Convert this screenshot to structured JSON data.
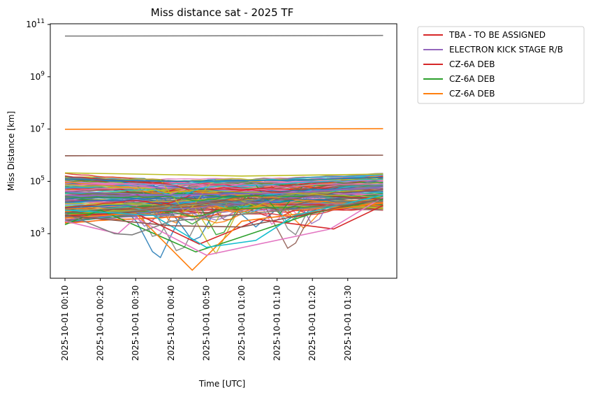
{
  "chart_data": {
    "type": "line",
    "title": "Miss distance sat - 2025 TF",
    "xlabel": "Time [UTC]",
    "ylabel": "Miss Distance [km]",
    "yscale": "log",
    "ylim": [
      10,
      100000000000
    ],
    "y_tick_labels": [
      {
        "base": "10",
        "exp": "3",
        "value": 1000
      },
      {
        "base": "10",
        "exp": "5",
        "value": 100000
      },
      {
        "base": "10",
        "exp": "7",
        "value": 10000000
      },
      {
        "base": "10",
        "exp": "9",
        "value": 1000000000
      },
      {
        "base": "10",
        "exp": "11",
        "value": 100000000000
      }
    ],
    "x_tick_labels": [
      "2025-10-01 00:10",
      "2025-10-01 00:20",
      "2025-10-01 00:30",
      "2025-10-01 00:40",
      "2025-10-01 00:50",
      "2025-10-01 01:00",
      "2025-10-01 01:10",
      "2025-10-01 01:20",
      "2025-10-01 01:30"
    ],
    "x_range": [
      "2025-10-01 00:10",
      "2025-10-01 01:40"
    ],
    "legend_position": "outside right",
    "grid": false,
    "legend": [
      {
        "name": "TBA - TO BE ASSIGNED",
        "color": "#d62728"
      },
      {
        "name": "ELECTRON KICK STAGE R/B",
        "color": "#9467bd"
      },
      {
        "name": "CZ-6A DEB",
        "color": "#d62728"
      },
      {
        "name": "CZ-6A DEB",
        "color": "#2ca02c"
      },
      {
        "name": "CZ-6A DEB",
        "color": "#ff7f0e"
      }
    ],
    "series": [
      {
        "color": "#7f7f7f",
        "times": [
          "2025-10-01 00:10",
          "2025-10-01 01:40"
        ],
        "values": [
          36000000000,
          38000000000
        ]
      },
      {
        "color": "#ff7f0e",
        "times": [
          "2025-10-01 00:10",
          "2025-10-01 01:40"
        ],
        "values": [
          9800000,
          10300000
        ]
      },
      {
        "color": "#8c564b",
        "times": [
          "2025-10-01 00:10",
          "2025-10-01 01:40"
        ],
        "values": [
          950000,
          1000000
        ]
      },
      {
        "color": "#bcbd22",
        "times": [
          "2025-10-01 00:10",
          "2025-10-01 00:30",
          "2025-10-01 01:00",
          "2025-10-01 01:40"
        ],
        "values": [
          210000,
          190000,
          160000,
          190000
        ]
      },
      {
        "color": "#1f77b4",
        "times": [
          "2025-10-01 00:10",
          "2025-10-01 00:40",
          "2025-10-01 01:10",
          "2025-10-01 01:40"
        ],
        "values": [
          120000,
          100000,
          110000,
          140000
        ]
      },
      {
        "color": "#d62728",
        "times": [
          "2025-10-01 00:10",
          "2025-10-01 00:30",
          "2025-10-01 00:48",
          "2025-10-01 01:05",
          "2025-10-01 01:26",
          "2025-10-01 01:40"
        ],
        "values": [
          5000,
          6000,
          400,
          3500,
          1500,
          12000
        ]
      },
      {
        "color": "#9467bd",
        "times": [
          "2025-10-01 00:10",
          "2025-10-01 00:40",
          "2025-10-01 01:10",
          "2025-10-01 01:40"
        ],
        "values": [
          40000,
          30000,
          35000,
          60000
        ]
      },
      {
        "color": "#2ca02c",
        "times": [
          "2025-10-01 00:10",
          "2025-10-01 00:20",
          "2025-10-01 00:47",
          "2025-10-01 00:56",
          "2025-10-01 01:20",
          "2025-10-01 01:40"
        ],
        "values": [
          2200,
          8000,
          200,
          500,
          6000,
          20000
        ]
      },
      {
        "color": "#ff7f0e",
        "times": [
          "2025-10-01 00:10",
          "2025-10-01 00:30",
          "2025-10-01 00:46",
          "2025-10-01 01:00",
          "2025-10-01 01:40"
        ],
        "values": [
          4000,
          6000,
          40,
          3000,
          15000
        ]
      },
      {
        "color": "#17becf",
        "times": [
          "2025-10-01 00:10",
          "2025-10-01 00:35",
          "2025-10-01 00:50",
          "2025-10-01 01:04",
          "2025-10-01 01:15",
          "2025-10-01 01:40"
        ],
        "values": [
          8000,
          5000,
          300,
          550,
          5000,
          30000
        ]
      },
      {
        "color": "#e377c2",
        "times": [
          "2025-10-01 00:10",
          "2025-10-01 00:25",
          "2025-10-01 00:30",
          "2025-10-01 00:50",
          "2025-10-01 01:25",
          "2025-10-01 01:40"
        ],
        "values": [
          3000,
          1000,
          4000,
          150,
          1500,
          25000
        ]
      },
      {
        "color": "#7f7f7f",
        "times": [
          "2025-10-01 00:10",
          "2025-10-01 00:24",
          "2025-10-01 00:29",
          "2025-10-01 00:40",
          "2025-10-01 01:40"
        ],
        "values": [
          6000,
          1000,
          900,
          3000,
          18000
        ]
      },
      {
        "color": "#8c564b",
        "times": [
          "2025-10-01 00:10",
          "2025-10-01 00:40",
          "2025-10-01 01:00",
          "2025-10-01 01:40"
        ],
        "values": [
          5000,
          2000,
          1800,
          22000
        ]
      }
    ]
  }
}
